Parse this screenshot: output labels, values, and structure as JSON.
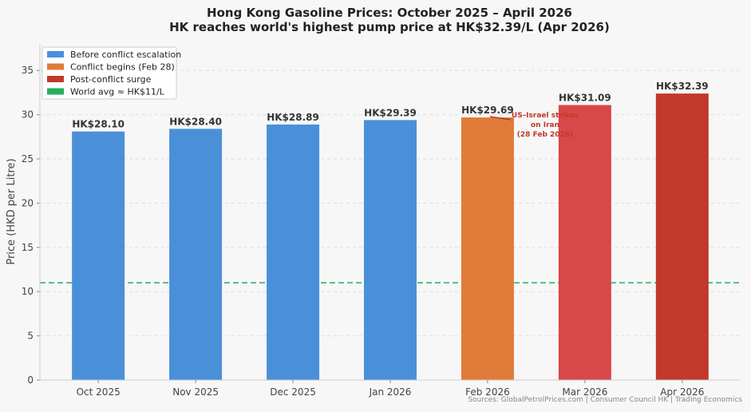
{
  "chart_data": {
    "type": "bar",
    "title": "Hong Kong Gasoline Prices: October 2025 – April 2026",
    "subtitle": "HK reaches world's highest pump price at HK$32.39/L (Apr 2026)",
    "xlabel": "",
    "ylabel": "Price (HKD per Litre)",
    "ylim": [
      0,
      38
    ],
    "yticks": [
      0,
      5,
      10,
      15,
      20,
      25,
      30,
      35
    ],
    "grid": true,
    "categories": [
      "Oct 2025",
      "Nov 2025",
      "Dec 2025",
      "Jan 2026",
      "Feb 2026",
      "Mar 2026",
      "Apr 2026"
    ],
    "values": [
      28.1,
      28.4,
      28.89,
      29.39,
      29.69,
      31.09,
      32.39
    ],
    "data_labels": [
      "HK$28.10",
      "HK$28.40",
      "HK$28.89",
      "HK$29.39",
      "HK$29.69",
      "HK$31.09",
      "HK$32.39"
    ],
    "bar_colors": [
      "#4a90d9",
      "#4a90d9",
      "#4a90d9",
      "#4a90d9",
      "#e07b39",
      "#d94848",
      "#c0392b"
    ],
    "reference_line": {
      "value": 11,
      "color": "#27ae60",
      "style": "dashed"
    },
    "annotation": {
      "lines": [
        "US–Israel strikes",
        "on Iran",
        "(28 Feb 2026)"
      ],
      "target_category": "Feb 2026",
      "color": "#c0392b"
    },
    "legend": {
      "placement": "top-left",
      "entries": [
        {
          "label": "Before conflict escalation",
          "color": "#4a90d9"
        },
        {
          "label": "Conflict begins (Feb 28)",
          "color": "#e07b39"
        },
        {
          "label": "Post-conflict surge",
          "color": "#c0392b"
        },
        {
          "label": "World avg ≈ HK$11/L",
          "color": "#27ae60"
        }
      ]
    },
    "source": "Sources: GlobalPetrolPrices.com | Consumer Council HK | Trading Economics"
  }
}
